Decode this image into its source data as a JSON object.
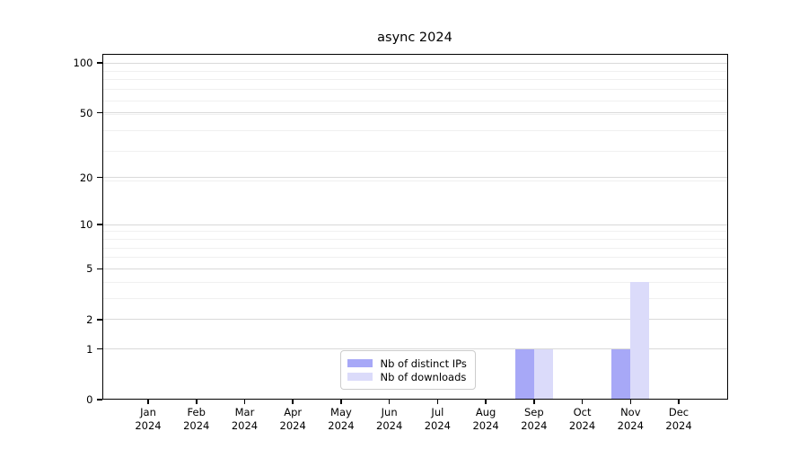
{
  "chart_data": {
    "type": "bar",
    "title": "async 2024",
    "x_tick_months": [
      "Jan",
      "Feb",
      "Mar",
      "Apr",
      "May",
      "Jun",
      "Jul",
      "Aug",
      "Sep",
      "Oct",
      "Nov",
      "Dec"
    ],
    "x_tick_year": "2024",
    "y_ticks": [
      0,
      1,
      2,
      5,
      10,
      20,
      50,
      100
    ],
    "y_scale": "log10(1+y)",
    "ylim": [
      0,
      113
    ],
    "series": [
      {
        "name": "Nb of distinct IPs",
        "color": "#a7a8f7",
        "values": [
          0,
          0,
          0,
          0,
          0,
          0,
          0,
          0,
          1,
          0,
          1,
          0
        ]
      },
      {
        "name": "Nb of downloads",
        "color": "#dbdbfa",
        "values": [
          0,
          0,
          0,
          0,
          0,
          0,
          0,
          0,
          1,
          0,
          4,
          0
        ]
      }
    ],
    "legend": {
      "position": "bottom-center-inside",
      "entries": [
        "Nb of distinct IPs",
        "Nb of downloads"
      ]
    },
    "grid": {
      "major_color": "#d9d9d9",
      "minor_color": "#f0f0f0",
      "minor_values": [
        3,
        4,
        6,
        7,
        8,
        9,
        19,
        29,
        39,
        49,
        59,
        69,
        79,
        89
      ]
    }
  },
  "colors": {
    "background": "#ffffff",
    "axis": "#000000",
    "text": "#000000"
  }
}
